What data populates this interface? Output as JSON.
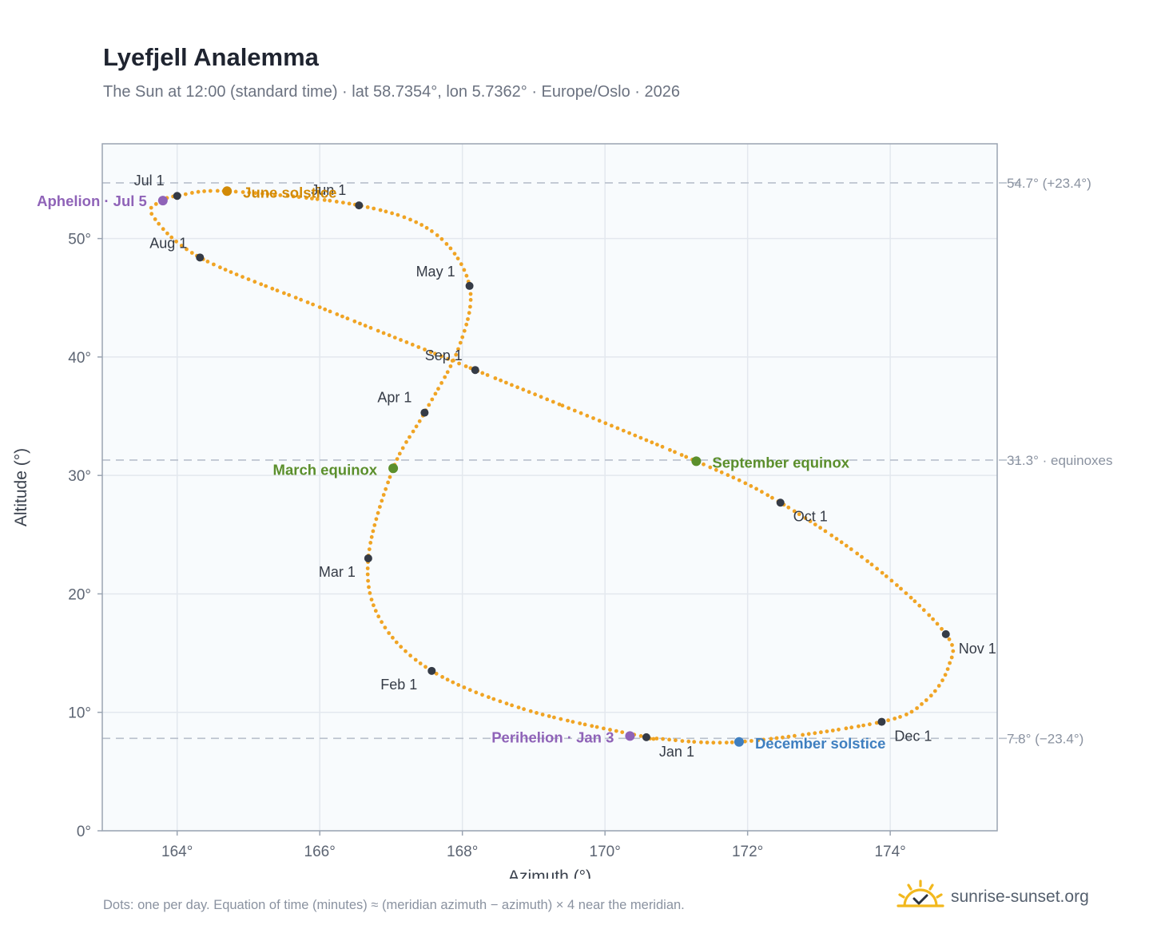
{
  "title": "Lyefjell Analemma",
  "subtitle": "The Sun at 12:00 (standard time) · lat 58.7354°, lon 5.7362° · Europe/Oslo · 2026",
  "footnote": "Dots: one per day. Equation of time (minutes) ≈ (meridian azimuth − azimuth) × 4 near the meridian.",
  "brand": {
    "text": "sunrise-sunset.org",
    "icon": "sun-icon",
    "color": "#f2b81d"
  },
  "colors": {
    "curve": "#f0a424",
    "month_dot": "#353b46",
    "aphelion": "#8f63b8",
    "june_solstice": "#d28a06",
    "equinox": "#5b8f2c",
    "december_solstice": "#3f7fc0",
    "reference_line": "#b8c0cc",
    "plot_bg": "#f8fbfd",
    "grid": "#e3e8ee",
    "frame": "#9aa4b2"
  },
  "chart_data": {
    "type": "scatter",
    "title": "Lyefjell Analemma",
    "xlabel": "Azimuth (°)",
    "ylabel": "Altitude (°)",
    "xlim": [
      162.95,
      175.5
    ],
    "ylim": [
      0,
      58
    ],
    "x_ticks": [
      164,
      166,
      168,
      170,
      172,
      174
    ],
    "x_tick_labels": [
      "164°",
      "166°",
      "168°",
      "170°",
      "172°",
      "174°"
    ],
    "y_ticks": [
      0,
      10,
      20,
      30,
      40,
      50
    ],
    "y_tick_labels": [
      "0°",
      "10°",
      "20°",
      "30°",
      "40°",
      "50°"
    ],
    "grid": true,
    "reference_lines": [
      {
        "y": 54.7,
        "label": "54.7° (+23.4°)"
      },
      {
        "y": 31.3,
        "label": "31.3° · equinoxes"
      },
      {
        "y": 7.8,
        "label": "7.8° (−23.4°)"
      }
    ],
    "series": [
      {
        "points_per": "day",
        "key_dates": [
          {
            "date": "Jan 1",
            "az": 170.58,
            "alt": 7.9
          },
          {
            "date": "Jan 16",
            "az": 168.9,
            "alt": 10.2
          },
          {
            "date": "Feb 1",
            "az": 167.57,
            "alt": 13.5
          },
          {
            "date": "Feb 15",
            "az": 166.85,
            "alt": 17.8
          },
          {
            "date": "Mar 1",
            "az": 166.68,
            "alt": 23.0
          },
          {
            "date": "Mar 20",
            "az": 167.03,
            "alt": 30.6
          },
          {
            "date": "Apr 1",
            "az": 167.47,
            "alt": 35.3
          },
          {
            "date": "Apr 15",
            "az": 167.95,
            "alt": 40.8
          },
          {
            "date": "May 1",
            "az": 168.1,
            "alt": 46.0
          },
          {
            "date": "May 15",
            "az": 167.6,
            "alt": 50.5
          },
          {
            "date": "Jun 1",
            "az": 166.55,
            "alt": 52.8
          },
          {
            "date": "Jun 21",
            "az": 164.7,
            "alt": 54.0
          },
          {
            "date": "Jul 1",
            "az": 164.0,
            "alt": 53.6
          },
          {
            "date": "Jul 5",
            "az": 163.8,
            "alt": 53.2
          },
          {
            "date": "Jul 15",
            "az": 163.65,
            "alt": 52.0
          },
          {
            "date": "Aug 1",
            "az": 164.32,
            "alt": 48.4
          },
          {
            "date": "Aug 15",
            "az": 166.0,
            "alt": 44.2
          },
          {
            "date": "Sep 1",
            "az": 168.18,
            "alt": 38.9
          },
          {
            "date": "Sep 22",
            "az": 171.28,
            "alt": 31.2
          },
          {
            "date": "Oct 1",
            "az": 172.46,
            "alt": 27.7
          },
          {
            "date": "Oct 15",
            "az": 173.8,
            "alt": 22.2
          },
          {
            "date": "Nov 1",
            "az": 174.78,
            "alt": 16.6
          },
          {
            "date": "Nov 10",
            "az": 174.82,
            "alt": 13.9
          },
          {
            "date": "Nov 20",
            "az": 174.5,
            "alt": 11.0
          },
          {
            "date": "Dec 1",
            "az": 173.88,
            "alt": 9.2
          },
          {
            "date": "Dec 21",
            "az": 171.88,
            "alt": 7.5
          },
          {
            "date": "Dec 31",
            "az": 170.7,
            "alt": 7.8
          }
        ]
      }
    ],
    "month_markers": [
      {
        "label": "Jan 1",
        "az": 170.58,
        "alt": 7.9,
        "anchor": "start",
        "dx": 16,
        "dy": 24
      },
      {
        "label": "Feb 1",
        "az": 167.57,
        "alt": 13.5,
        "anchor": "end",
        "dx": -18,
        "dy": 23
      },
      {
        "label": "Mar 1",
        "az": 166.68,
        "alt": 23.0,
        "anchor": "end",
        "dx": -16,
        "dy": 23
      },
      {
        "label": "Apr 1",
        "az": 167.47,
        "alt": 35.3,
        "anchor": "end",
        "dx": -16,
        "dy": -13
      },
      {
        "label": "May 1",
        "az": 168.1,
        "alt": 46.0,
        "anchor": "end",
        "dx": -18,
        "dy": -12
      },
      {
        "label": "Jun 1",
        "az": 166.55,
        "alt": 52.8,
        "anchor": "end",
        "dx": -16,
        "dy": -13
      },
      {
        "label": "Jul 1",
        "az": 164.0,
        "alt": 53.6,
        "anchor": "end",
        "dx": -16,
        "dy": -13
      },
      {
        "label": "Aug 1",
        "az": 164.32,
        "alt": 48.4,
        "anchor": "end",
        "dx": -16,
        "dy": -12
      },
      {
        "label": "Sep 1",
        "az": 168.18,
        "alt": 38.9,
        "anchor": "end",
        "dx": -16,
        "dy": -12
      },
      {
        "label": "Oct 1",
        "az": 172.46,
        "alt": 27.7,
        "anchor": "start",
        "dx": 16,
        "dy": 23
      },
      {
        "label": "Nov 1",
        "az": 174.78,
        "alt": 16.6,
        "anchor": "start",
        "dx": 16,
        "dy": 24
      },
      {
        "label": "Dec 1",
        "az": 173.88,
        "alt": 9.2,
        "anchor": "start",
        "dx": 16,
        "dy": 24
      }
    ],
    "events": [
      {
        "label": "Aphelion · Jul 5",
        "az": 163.8,
        "alt": 53.2,
        "color_key": "aphelion",
        "anchor": "end",
        "dx": -20,
        "dy": 7
      },
      {
        "label": "June solstice",
        "az": 164.7,
        "alt": 54.0,
        "color_key": "june_solstice",
        "anchor": "start",
        "dx": 20,
        "dy": 8
      },
      {
        "label": "March equinox",
        "az": 167.03,
        "alt": 30.6,
        "color_key": "equinox",
        "anchor": "end",
        "dx": -20,
        "dy": 8
      },
      {
        "label": "September equinox",
        "az": 171.28,
        "alt": 31.2,
        "color_key": "equinox",
        "anchor": "start",
        "dx": 20,
        "dy": 8
      },
      {
        "label": "Perihelion · Jan 3",
        "az": 170.35,
        "alt": 8.0,
        "color_key": "aphelion",
        "anchor": "end",
        "dx": -20,
        "dy": 8
      },
      {
        "label": "December solstice",
        "az": 171.88,
        "alt": 7.5,
        "color_key": "december_solstice",
        "anchor": "start",
        "dx": 20,
        "dy": 8
      }
    ]
  }
}
